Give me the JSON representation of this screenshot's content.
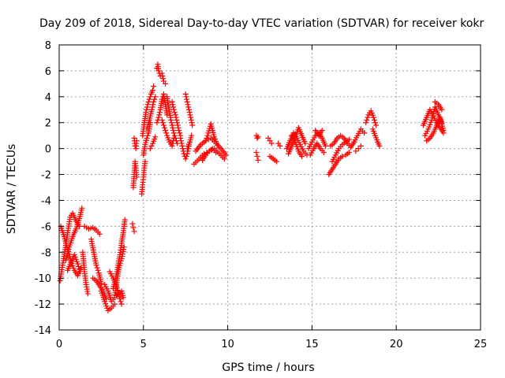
{
  "chart_data": {
    "type": "scatter",
    "title": "Day 209 of 2018, Sidereal Day-to-day VTEC variation (SDTVAR) for receiver kokr",
    "xlabel": "GPS time / hours",
    "ylabel": "SDTVAR / TECUs",
    "xlim": [
      0,
      25
    ],
    "ylim": [
      -14,
      8
    ],
    "xticks": [
      0,
      5,
      10,
      15,
      20,
      25
    ],
    "yticks": [
      -14,
      -12,
      -10,
      -8,
      -6,
      -4,
      -2,
      0,
      2,
      4,
      6,
      8
    ],
    "grid": true,
    "marker": "+",
    "series": [
      {
        "name": "SDTVAR",
        "color": "#ff0000",
        "segments": [
          {
            "x": [
              0.05,
              0.2,
              0.35,
              0.5,
              0.65,
              0.8,
              1.0,
              1.2
            ],
            "y": [
              -10.2,
              -9.0,
              -7.8,
              -6.5,
              -5.3,
              -5.0,
              -5.6,
              -6.0
            ]
          },
          {
            "x": [
              0.1,
              0.3,
              0.5,
              0.7,
              0.9,
              1.1,
              1.3
            ],
            "y": [
              -6.0,
              -6.8,
              -7.8,
              -8.7,
              -9.4,
              -9.8,
              -9.2
            ]
          },
          {
            "x": [
              0.4,
              0.6,
              0.8,
              1.0,
              1.2,
              1.35
            ],
            "y": [
              -8.6,
              -7.6,
              -6.8,
              -6.2,
              -5.4,
              -4.6
            ]
          },
          {
            "x": [
              0.5,
              0.7,
              0.9,
              1.1,
              1.25
            ],
            "y": [
              -9.4,
              -8.8,
              -8.2,
              -8.9,
              -9.5
            ]
          },
          {
            "x": [
              1.4,
              1.5,
              1.6,
              1.7
            ],
            "y": [
              -8.0,
              -9.5,
              -10.5,
              -11.2
            ]
          },
          {
            "x": [
              1.5,
              1.75,
              2.0,
              2.2,
              2.4
            ],
            "y": [
              -6.0,
              -6.2,
              -6.1,
              -6.3,
              -6.6
            ]
          },
          {
            "x": [
              1.9,
              2.05,
              2.2,
              2.35,
              2.5
            ],
            "y": [
              -7.0,
              -8.0,
              -9.0,
              -9.6,
              -10.4
            ]
          },
          {
            "x": [
              2.0,
              2.2,
              2.4,
              2.6,
              2.8
            ],
            "y": [
              -10.0,
              -10.2,
              -10.6,
              -11.0,
              -11.6
            ]
          },
          {
            "x": [
              2.5,
              2.7,
              2.9,
              3.1,
              3.3
            ],
            "y": [
              -11.0,
              -11.8,
              -12.5,
              -12.3,
              -12.0
            ]
          },
          {
            "x": [
              2.7,
              2.9,
              3.1,
              3.3,
              3.5,
              3.7,
              3.8
            ],
            "y": [
              -10.5,
              -11.0,
              -11.8,
              -11.5,
              -11.2,
              -11.0,
              -11.5
            ]
          },
          {
            "x": [
              3.0,
              3.2,
              3.4,
              3.6,
              3.7
            ],
            "y": [
              -9.5,
              -10.0,
              -10.6,
              -11.6,
              -12.0
            ]
          },
          {
            "x": [
              3.2,
              3.35,
              3.5,
              3.6,
              3.7,
              3.8,
              3.9
            ],
            "y": [
              -10.8,
              -10.0,
              -9.0,
              -8.2,
              -7.3,
              -6.5,
              -5.5
            ]
          },
          {
            "x": [
              3.3,
              3.45,
              3.55,
              3.7,
              3.85
            ],
            "y": [
              -11.3,
              -10.0,
              -9.2,
              -8.5,
              -7.6
            ]
          },
          {
            "x": [
              4.35,
              4.4,
              4.45
            ],
            "y": [
              -5.8,
              -6.1,
              -6.4
            ]
          },
          {
            "x": [
              4.4,
              4.45,
              4.5,
              4.55,
              4.6
            ],
            "y": [
              -3.0,
              -2.0,
              -1.0,
              -1.5,
              -2.2
            ]
          },
          {
            "x": [
              4.45,
              4.5,
              4.55,
              4.6
            ],
            "y": [
              0.8,
              0.2,
              0.0,
              0.6
            ]
          },
          {
            "x": [
              4.9,
              4.95,
              5.0,
              5.05,
              5.1
            ],
            "y": [
              -3.5,
              -2.8,
              -2.2,
              -1.5,
              -1.0
            ]
          },
          {
            "x": [
              4.95,
              5.05,
              5.15,
              5.25,
              5.35,
              5.45,
              5.55,
              5.6
            ],
            "y": [
              1.0,
              2.0,
              2.8,
              3.4,
              3.8,
              4.2,
              4.5,
              4.8
            ]
          },
          {
            "x": [
              5.0,
              5.1,
              5.2,
              5.3,
              5.4
            ],
            "y": [
              -0.5,
              0.3,
              0.8,
              1.2,
              2.0
            ]
          },
          {
            "x": [
              5.2,
              5.35,
              5.5,
              5.6,
              5.7
            ],
            "y": [
              1.5,
              2.2,
              3.0,
              3.6,
              4.0
            ]
          },
          {
            "x": [
              5.4,
              5.55,
              5.7
            ],
            "y": [
              0.0,
              0.4,
              0.9
            ]
          },
          {
            "x": [
              5.8,
              5.85,
              5.9,
              6.0,
              6.1,
              6.2,
              6.3
            ],
            "y": [
              6.2,
              6.5,
              6.0,
              5.6,
              5.8,
              5.2,
              5.0
            ]
          },
          {
            "x": [
              5.8,
              5.9,
              6.0,
              6.1,
              6.2,
              6.3,
              6.4
            ],
            "y": [
              2.0,
              2.4,
              3.0,
              3.8,
              4.2,
              3.4,
              2.6
            ]
          },
          {
            "x": [
              6.1,
              6.25,
              6.4,
              6.55,
              6.7,
              6.8
            ],
            "y": [
              2.2,
              1.6,
              1.0,
              0.5,
              0.2,
              0.8
            ]
          },
          {
            "x": [
              6.4,
              6.5,
              6.6,
              6.7,
              6.8,
              6.9,
              7.0
            ],
            "y": [
              4.0,
              3.2,
              2.4,
              1.8,
              1.2,
              0.8,
              0.4
            ]
          },
          {
            "x": [
              6.7,
              6.8,
              6.9,
              7.0,
              7.1,
              7.2
            ],
            "y": [
              3.6,
              3.0,
              2.6,
              2.0,
              1.4,
              1.0
            ]
          },
          {
            "x": [
              7.2,
              7.3,
              7.4,
              7.5,
              7.6,
              7.7
            ],
            "y": [
              0.8,
              0.2,
              -0.4,
              -0.8,
              -0.4,
              0.2
            ]
          },
          {
            "x": [
              7.5,
              7.6,
              7.7,
              7.8,
              7.9
            ],
            "y": [
              4.2,
              3.6,
              3.0,
              2.4,
              1.8
            ]
          },
          {
            "x": [
              7.6,
              7.75,
              7.85
            ],
            "y": [
              0.0,
              0.5,
              1.0
            ]
          },
          {
            "x": [
              8.0,
              8.3,
              8.6,
              8.9,
              9.2,
              9.5,
              9.8
            ],
            "y": [
              -1.2,
              -0.8,
              -0.4,
              -0.2,
              0.0,
              -0.4,
              -0.8
            ]
          },
          {
            "x": [
              8.1,
              8.4,
              8.7,
              9.0,
              9.3,
              9.6,
              9.9
            ],
            "y": [
              -0.2,
              0.3,
              0.6,
              0.8,
              0.4,
              0.0,
              -0.5
            ]
          },
          {
            "x": [
              8.7,
              8.85,
              9.0,
              9.1,
              9.2,
              9.35,
              9.5
            ],
            "y": [
              0.6,
              1.2,
              1.9,
              1.4,
              0.9,
              0.4,
              0.1
            ]
          },
          {
            "x": [
              8.5,
              8.7,
              8.9,
              9.1,
              9.3
            ],
            "y": [
              -0.9,
              -0.5,
              -0.2,
              0.0,
              -0.3
            ]
          },
          {
            "x": [
              11.7,
              11.75,
              11.8
            ],
            "y": [
              1.0,
              0.8,
              0.9
            ]
          },
          {
            "x": [
              11.7,
              11.75,
              11.8
            ],
            "y": [
              -0.3,
              -0.6,
              -0.9
            ]
          },
          {
            "x": [
              12.4,
              12.5,
              12.6
            ],
            "y": [
              0.8,
              0.6,
              0.4
            ]
          },
          {
            "x": [
              12.5,
              12.7,
              12.9
            ],
            "y": [
              -0.6,
              -0.8,
              -1.0
            ]
          },
          {
            "x": [
              13.0,
              13.1
            ],
            "y": [
              0.4,
              0.2
            ]
          },
          {
            "x": [
              13.5,
              13.7,
              13.9,
              14.1,
              14.3,
              14.5,
              14.7
            ],
            "y": [
              0.0,
              0.6,
              1.2,
              0.8,
              0.3,
              -0.2,
              -0.5
            ]
          },
          {
            "x": [
              13.6,
              13.8,
              14.0,
              14.2,
              14.4,
              14.6
            ],
            "y": [
              -0.4,
              0.2,
              0.8,
              1.6,
              1.0,
              0.4
            ]
          },
          {
            "x": [
              13.8,
              14.0,
              14.2,
              14.4
            ],
            "y": [
              1.0,
              0.5,
              -0.2,
              -0.6
            ]
          },
          {
            "x": [
              14.8,
              15.0,
              15.2,
              15.4,
              15.6,
              15.8
            ],
            "y": [
              0.0,
              0.5,
              1.0,
              1.2,
              0.8,
              0.2
            ]
          },
          {
            "x": [
              14.9,
              15.1,
              15.3,
              15.5,
              15.7
            ],
            "y": [
              -0.5,
              0.0,
              0.4,
              0.0,
              -0.3
            ]
          },
          {
            "x": [
              15.2,
              15.4,
              15.6
            ],
            "y": [
              1.4,
              1.0,
              1.4
            ]
          },
          {
            "x": [
              16.0,
              16.2,
              16.4,
              16.6,
              16.8,
              17.0,
              17.2
            ],
            "y": [
              -2.0,
              -1.6,
              -1.2,
              -0.8,
              -0.6,
              -0.5,
              -0.3
            ]
          },
          {
            "x": [
              16.1,
              16.3,
              16.5,
              16.7,
              16.9,
              17.1,
              17.3,
              17.5
            ],
            "y": [
              0.2,
              0.4,
              0.8,
              1.0,
              0.8,
              0.4,
              0.1,
              0.5
            ]
          },
          {
            "x": [
              16.2,
              16.4,
              16.6,
              16.8,
              17.0,
              17.2
            ],
            "y": [
              -1.0,
              -0.5,
              0.0,
              0.3,
              0.5,
              0.7
            ]
          },
          {
            "x": [
              17.5,
              17.7,
              17.9,
              18.1
            ],
            "y": [
              0.5,
              1.0,
              1.5,
              1.2
            ]
          },
          {
            "x": [
              17.6,
              17.75,
              17.9
            ],
            "y": [
              -0.2,
              0.0,
              0.2
            ]
          },
          {
            "x": [
              18.2,
              18.35,
              18.5,
              18.65,
              18.8
            ],
            "y": [
              2.0,
              2.6,
              2.9,
              2.4,
              1.8
            ]
          },
          {
            "x": [
              18.6,
              18.75,
              18.9,
              19.0
            ],
            "y": [
              1.5,
              1.0,
              0.5,
              0.2
            ]
          },
          {
            "x": [
              21.6,
              21.8,
              22.0,
              22.2,
              22.4,
              22.6,
              22.8
            ],
            "y": [
              1.8,
              2.4,
              3.0,
              2.5,
              2.0,
              1.6,
              1.2
            ]
          },
          {
            "x": [
              21.7,
              21.9,
              22.1,
              22.3,
              22.5,
              22.7
            ],
            "y": [
              1.0,
              1.5,
              2.2,
              3.2,
              2.6,
              2.0
            ]
          },
          {
            "x": [
              21.8,
              22.0,
              22.2,
              22.4,
              22.6,
              22.8
            ],
            "y": [
              0.6,
              0.8,
              1.2,
              1.8,
              2.4,
              1.4
            ]
          },
          {
            "x": [
              22.3,
              22.5,
              22.7
            ],
            "y": [
              3.6,
              3.4,
              3.0
            ]
          }
        ]
      }
    ]
  }
}
